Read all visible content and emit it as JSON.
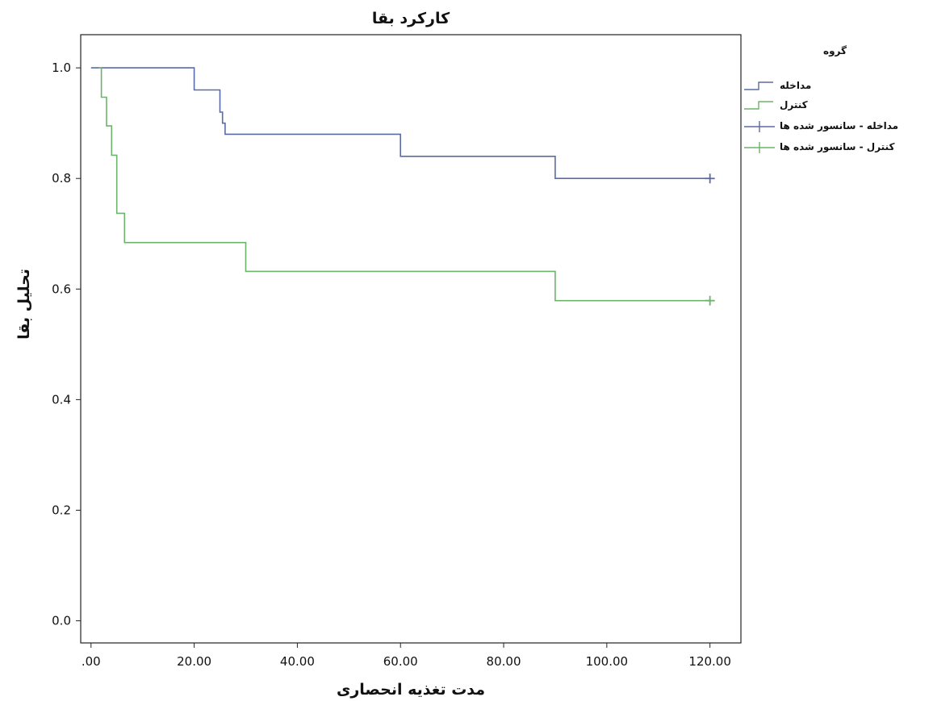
{
  "chart_data": {
    "type": "line",
    "title": "کارکرد بقا",
    "xlabel": "مدت تغذیه انحصاری",
    "ylabel": "تحلیل بقا",
    "xlim": [
      -2,
      126
    ],
    "ylim": [
      -0.04,
      1.06
    ],
    "x_ticks": [
      0,
      20,
      40,
      60,
      80,
      100,
      120
    ],
    "x_tick_labels": [
      ".00",
      "20.00",
      "40.00",
      "60.00",
      "80.00",
      "100.00",
      "120.00"
    ],
    "y_ticks": [
      0.0,
      0.2,
      0.4,
      0.6,
      0.8,
      1.0
    ],
    "y_tick_labels": [
      "0.0",
      "0.2",
      "0.4",
      "0.6",
      "0.8",
      "1.0"
    ],
    "legend_title": "گروه",
    "legend_position": "top-right outside",
    "series": [
      {
        "name": "مداخله",
        "color": "#5a6ba5",
        "step_points": [
          [
            0,
            1.0
          ],
          [
            20,
            1.0
          ],
          [
            20,
            0.96
          ],
          [
            25,
            0.96
          ],
          [
            25,
            0.92
          ],
          [
            25.5,
            0.92
          ],
          [
            25.5,
            0.9
          ],
          [
            26,
            0.9
          ],
          [
            26,
            0.88
          ],
          [
            60,
            0.88
          ],
          [
            60,
            0.84
          ],
          [
            90,
            0.84
          ],
          [
            90,
            0.8
          ],
          [
            120,
            0.8
          ]
        ],
        "censored": [
          [
            120,
            0.8
          ]
        ],
        "censored_name": "مداخله - سانسور شده ها"
      },
      {
        "name": "کنترل",
        "color": "#6db36d",
        "step_points": [
          [
            1.5,
            1.0
          ],
          [
            2,
            1.0
          ],
          [
            2,
            0.947
          ],
          [
            3,
            0.947
          ],
          [
            3,
            0.895
          ],
          [
            4,
            0.895
          ],
          [
            4,
            0.842
          ],
          [
            5,
            0.842
          ],
          [
            5,
            0.737
          ],
          [
            6.5,
            0.737
          ],
          [
            6.5,
            0.684
          ],
          [
            30,
            0.684
          ],
          [
            30,
            0.632
          ],
          [
            90,
            0.632
          ],
          [
            90,
            0.579
          ],
          [
            120,
            0.579
          ]
        ],
        "censored": [
          [
            120,
            0.579
          ]
        ],
        "censored_name": "کنترل - سانسور شده ها"
      }
    ]
  }
}
